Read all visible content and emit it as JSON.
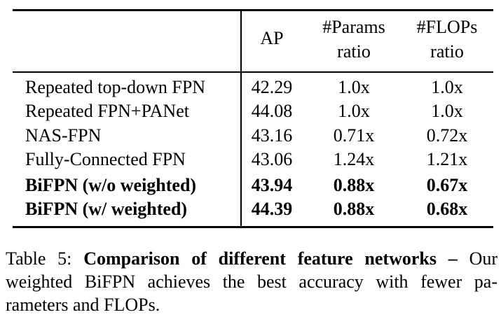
{
  "table": {
    "header": {
      "ap": "AP",
      "params_line1": "#Params",
      "params_line2": "ratio",
      "flops_line1": "#FLOPs",
      "flops_line2": "ratio"
    },
    "rows": [
      {
        "method": "Repeated top-down FPN",
        "ap": "42.29",
        "params": "1.0x",
        "flops": "1.0x",
        "bold": false
      },
      {
        "method": "Repeated FPN+PANet",
        "ap": "44.08",
        "params": "1.0x",
        "flops": "1.0x",
        "bold": false
      },
      {
        "method": "NAS-FPN",
        "ap": "43.16",
        "params": "0.71x",
        "flops": "0.72x",
        "bold": false
      },
      {
        "method": "Fully-Connected FPN",
        "ap": "43.06",
        "params": "1.24x",
        "flops": "1.21x",
        "bold": false
      },
      {
        "method": "BiFPN (w/o weighted)",
        "ap": "43.94",
        "params": "0.88x",
        "flops": "0.67x",
        "bold": true
      },
      {
        "method": "BiFPN (w/ weighted)",
        "ap": "44.39",
        "params": "0.88x",
        "flops": "0.68x",
        "bold": true
      }
    ]
  },
  "caption": {
    "label": "Table 5:",
    "bold_title": "Comparison of different feature networks –",
    "line1_tail": "Our",
    "line2": "weighted BiFPN achieves the best accuracy with fewer pa-",
    "line3": "rameters and FLOPs."
  }
}
